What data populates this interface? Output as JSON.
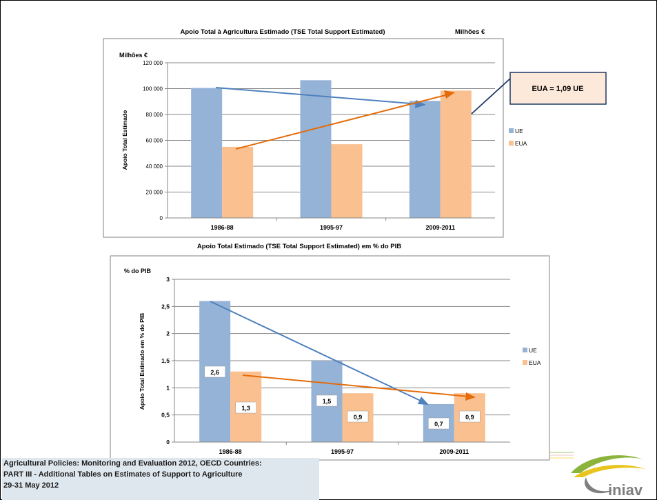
{
  "charts": [
    {
      "chart_data": {
        "type": "bar",
        "title": "Apoio Total à Agricultura Estimado (TSE Total Support Estimated)",
        "title_unit": "Milhões €",
        "unit_label": "Milhões €",
        "ylabel": "Apoio Total Estimado",
        "categories": [
          "1986-88",
          "1995-97",
          "2009-2011"
        ],
        "series": [
          {
            "name": "UE",
            "values": [
              100500,
              106500,
              90500
            ],
            "color": "#95b3d7"
          },
          {
            "name": "EUA",
            "values": [
              55000,
              57000,
              98500
            ],
            "color": "#fac090"
          }
        ],
        "ylim": [
          0,
          120000
        ],
        "yticks": [
          0,
          20000,
          40000,
          60000,
          80000,
          100000,
          120000
        ],
        "ytick_labels": [
          "0",
          "20 000",
          "40 000",
          "60 000",
          "80 000",
          "100 000",
          "120 000"
        ],
        "grid": true,
        "legend": "right",
        "callout": "EUA = 1,09 UE",
        "data_labels": false,
        "value_labels": []
      }
    },
    {
      "chart_data": {
        "type": "bar",
        "title": "Apoio Total Estimado (TSE Total Support Estimated)  em % do PIB",
        "title_unit": "",
        "unit_label": "% do PIB",
        "ylabel": "Apoio Total Estimado em % do PIB",
        "categories": [
          "1986-88",
          "1995-97",
          "2009-2011"
        ],
        "series": [
          {
            "name": "UE",
            "values": [
              2.6,
              1.5,
              0.7
            ],
            "color": "#95b3d7"
          },
          {
            "name": "EUA",
            "values": [
              1.3,
              0.9,
              0.9
            ],
            "color": "#fac090"
          }
        ],
        "ylim": [
          0,
          3
        ],
        "yticks": [
          0,
          0.5,
          1,
          1.5,
          2,
          2.5,
          3
        ],
        "ytick_labels": [
          "0",
          "0,5",
          "1",
          "1,5",
          "2",
          "2,5",
          "3"
        ],
        "grid": true,
        "legend": "right",
        "callout": "",
        "data_labels": true,
        "value_labels": [
          [
            "2,6",
            "1,5",
            "0,7"
          ],
          [
            "1,3",
            "0,9",
            "0,9"
          ]
        ]
      }
    }
  ],
  "footer": {
    "line1": "Agricultural Policies: Monitoring and Evaluation 2012, OECD Countries:",
    "line2": "PART III - Additional Tables on Estimates of Support to Agriculture",
    "line3": "29-31 May 2012"
  },
  "logo": {
    "text": "iniav",
    "colors": {
      "green": "#8cb43c",
      "yellow": "#e8c41c",
      "gray": "#7f7f7f"
    }
  },
  "colors": {
    "ue": "#95b3d7",
    "eua": "#fac090",
    "ue_arrow": "#4f81bd",
    "eua_arrow": "#e46c0a"
  }
}
